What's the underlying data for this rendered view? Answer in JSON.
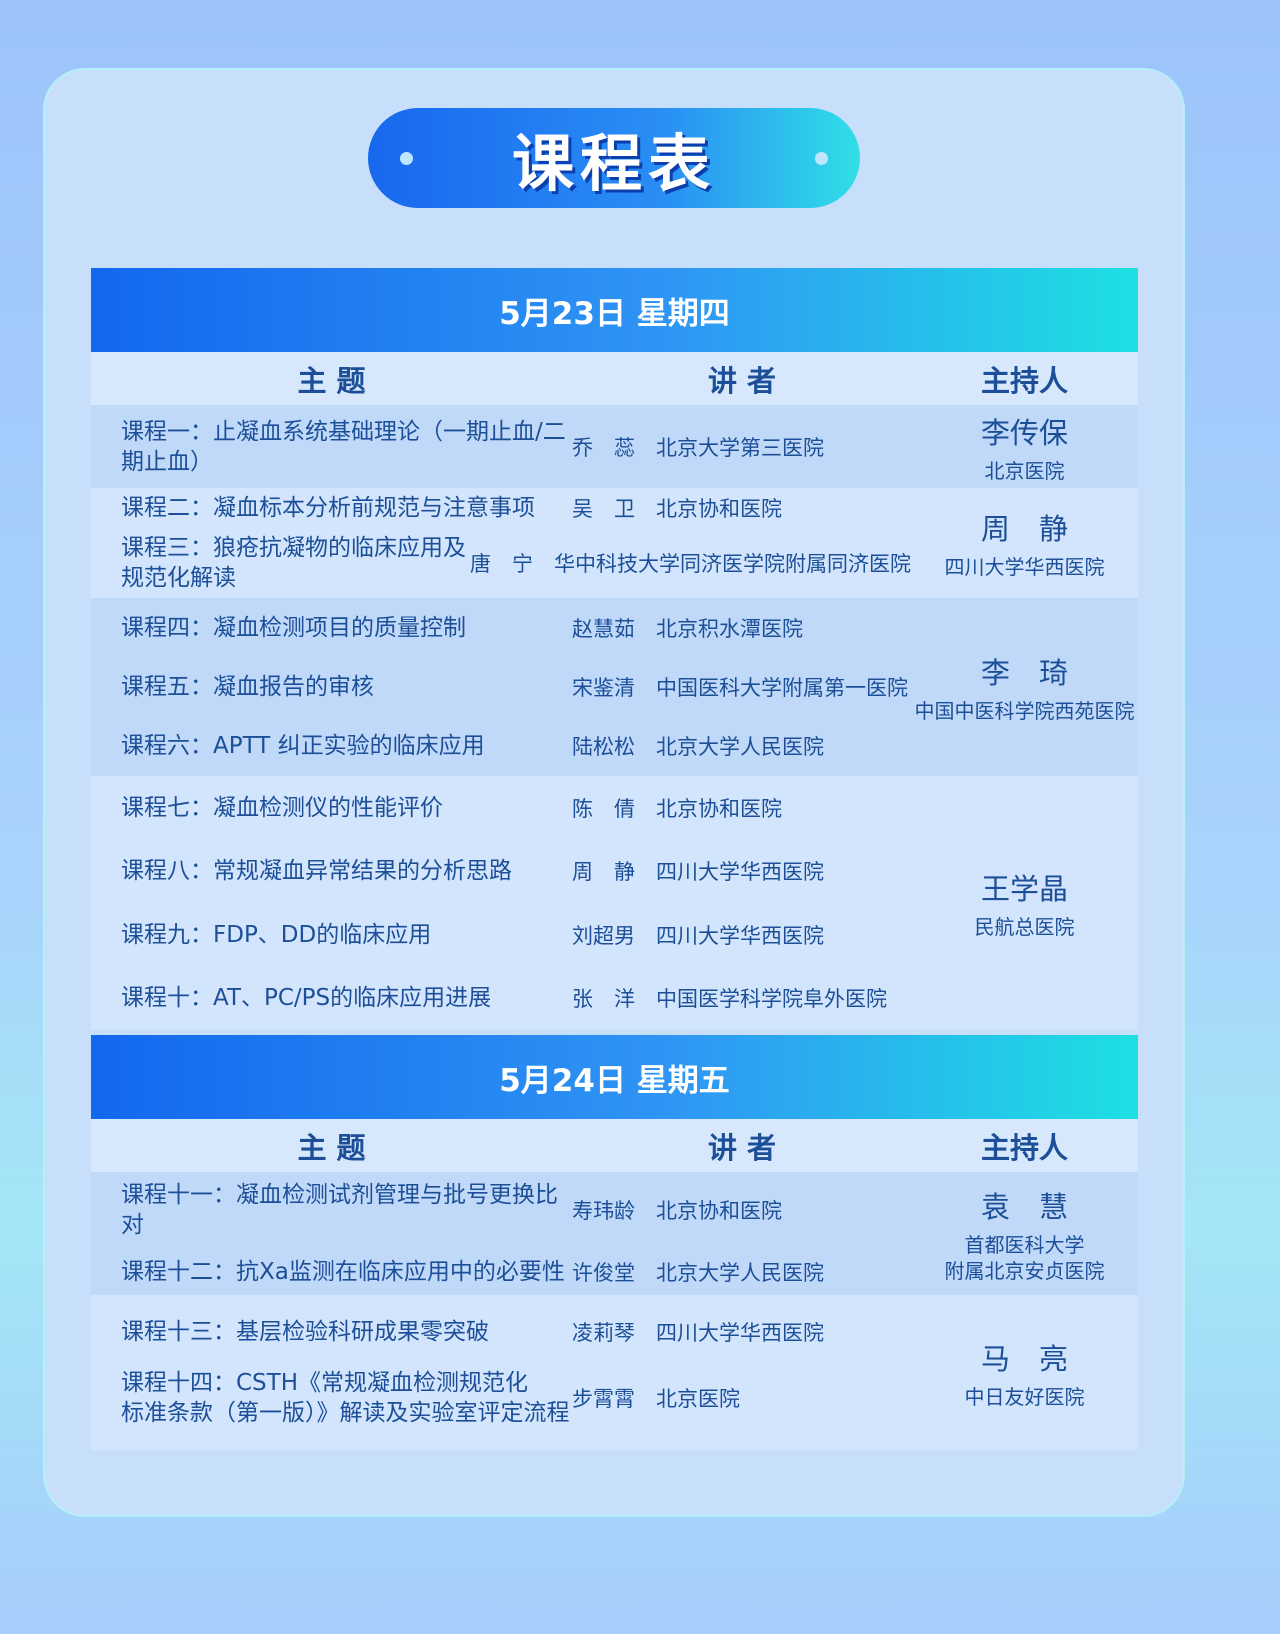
{
  "title": "课程表",
  "columns": [
    "主 题",
    "讲 者",
    "主持人"
  ],
  "days": [
    {
      "date": "5月23日 星期四",
      "groups": [
        {
          "rows": [
            {
              "topic": "课程一：止凝血系统基础理论（一期止血/二期止血）",
              "speaker": "乔　蕊　北京大学第三医院"
            }
          ],
          "host": {
            "name": "李传保",
            "hospital": "北京医院"
          }
        },
        {
          "rows": [
            {
              "topic": "课程二：凝血标本分析前规范与注意事项",
              "speaker": "吴　卫　北京协和医院"
            },
            {
              "topic": "课程三：狼疮抗凝物的临床应用及规范化解读",
              "speaker": "唐　宁　华中科技大学同济医学院附属同济医院"
            }
          ],
          "host": {
            "name": "周　静",
            "hospital": "四川大学华西医院"
          }
        },
        {
          "rows": [
            {
              "topic": "课程四：凝血检测项目的质量控制",
              "speaker": "赵慧茹　北京积水潭医院"
            },
            {
              "topic": "课程五：凝血报告的审核",
              "speaker": "宋鉴清　中国医科大学附属第一医院"
            },
            {
              "topic": "课程六：APTT 纠正实验的临床应用",
              "speaker": "陆松松　北京大学人民医院"
            }
          ],
          "host": {
            "name": "李　琦",
            "hospital": "中国中医科学院西苑医院"
          }
        },
        {
          "rows": [
            {
              "topic": "课程七：凝血检测仪的性能评价",
              "speaker": "陈　倩　北京协和医院"
            },
            {
              "topic": "课程八：常规凝血异常结果的分析思路",
              "speaker": "周　静　四川大学华西医院"
            },
            {
              "topic": "课程九：FDP、DD的临床应用",
              "speaker": "刘超男　四川大学华西医院"
            },
            {
              "topic": "课程十：AT、PC/PS的临床应用进展",
              "speaker": "张　洋　中国医学科学院阜外医院"
            }
          ],
          "host": {
            "name": "王学晶",
            "hospital": "民航总医院"
          }
        }
      ]
    },
    {
      "date": "5月24日 星期五",
      "groups": [
        {
          "rows": [
            {
              "topic": "课程十一：凝血检测试剂管理与批号更换比对",
              "speaker": "寿玮龄　北京协和医院"
            },
            {
              "topic": "课程十二：抗Xa监测在临床应用中的必要性",
              "speaker": "许俊堂　北京大学人民医院"
            }
          ],
          "host": {
            "name": "袁　慧",
            "hospital": "首都医科大学\n附属北京安贞医院"
          }
        },
        {
          "rows": [
            {
              "topic": "课程十三：基层检验科研成果零突破",
              "speaker": "凌莉琴　四川大学华西医院"
            },
            {
              "topic": "课程十四：CSTH《常规凝血检测规范化\n标准条款（第一版）》解读及实验室评定流程",
              "speaker": "步霄霄　北京医院"
            }
          ],
          "host": {
            "name": "马　亮",
            "hospital": "中日友好医院"
          }
        }
      ]
    }
  ]
}
